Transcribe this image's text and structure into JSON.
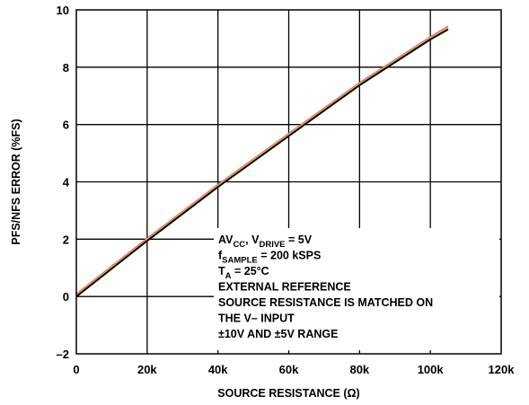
{
  "chart_data": {
    "type": "line",
    "title": "",
    "xlabel": "SOURCE RESISTANCE (Ω)",
    "ylabel": "PFS/NFS ERROR (%FS)",
    "xlim": [
      0,
      120000
    ],
    "ylim": [
      -2,
      10
    ],
    "x_tick_labels": [
      "0",
      "20k",
      "40k",
      "60k",
      "80k",
      "100k",
      "120k"
    ],
    "y_tick_labels": [
      "–2",
      "0",
      "2",
      "4",
      "6",
      "8",
      "10"
    ],
    "x_ticks": [
      0,
      20000,
      40000,
      60000,
      80000,
      100000,
      120000
    ],
    "y_ticks": [
      -2,
      0,
      2,
      4,
      6,
      8,
      10
    ],
    "grid": true,
    "series": [
      {
        "color": "#e05aa8",
        "x": [
          0,
          20000,
          40000,
          60000,
          80000,
          100000,
          105000
        ],
        "y": [
          0.08,
          2.02,
          3.9,
          5.68,
          7.45,
          9.05,
          9.42
        ]
      },
      {
        "color": "#e8d000",
        "x": [
          0,
          20000,
          40000,
          60000,
          80000,
          100000,
          105000
        ],
        "y": [
          0.04,
          1.98,
          3.86,
          5.64,
          7.41,
          9.01,
          9.37
        ]
      },
      {
        "color": "#000000",
        "x": [
          0,
          20000,
          40000,
          60000,
          80000,
          100000,
          105000
        ],
        "y": [
          0.0,
          1.94,
          3.82,
          5.6,
          7.37,
          8.97,
          9.32
        ]
      }
    ],
    "annotation_lines": [
      {
        "segments": [
          {
            "text": "AV"
          },
          {
            "text": "CC",
            "sub": true
          },
          {
            "text": ", V"
          },
          {
            "text": "DRIVE",
            "sub": true
          },
          {
            "text": " = 5V"
          }
        ]
      },
      {
        "segments": [
          {
            "text": "f"
          },
          {
            "text": "SAMPLE",
            "sub": true
          },
          {
            "text": " = 200 kSPS"
          }
        ]
      },
      {
        "segments": [
          {
            "text": "T"
          },
          {
            "text": "A",
            "sub": true
          },
          {
            "text": " = 25°C"
          }
        ]
      },
      {
        "segments": [
          {
            "text": "EXTERNAL REFERENCE"
          }
        ]
      },
      {
        "segments": [
          {
            "text": "SOURCE RESISTANCE IS MATCHED ON"
          }
        ]
      },
      {
        "segments": [
          {
            "text": "THE V– INPUT"
          }
        ]
      },
      {
        "segments": [
          {
            "text": "±10V AND ±5V RANGE"
          }
        ]
      }
    ]
  }
}
